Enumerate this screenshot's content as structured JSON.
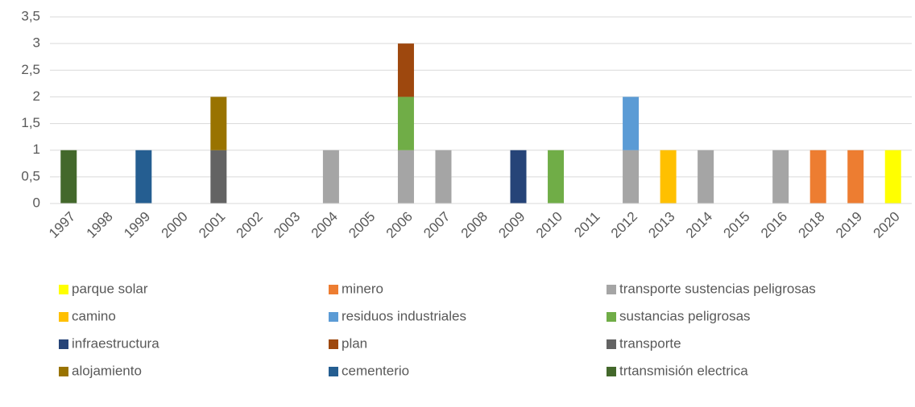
{
  "chart_data": {
    "type": "bar",
    "stacked": true,
    "categories": [
      "1997",
      "1998",
      "1999",
      "2000",
      "2001",
      "2002",
      "2003",
      "2004",
      "2005",
      "2006",
      "2007",
      "2008",
      "2009",
      "2010",
      "2011",
      "2012",
      "2013",
      "2014",
      "2015",
      "2016",
      "2018",
      "2019",
      "2020"
    ],
    "series": [
      {
        "name": "parque solar",
        "color": "#ffff00",
        "values": [
          0,
          0,
          0,
          0,
          0,
          0,
          0,
          0,
          0,
          0,
          0,
          0,
          0,
          0,
          0,
          0,
          0,
          0,
          0,
          0,
          0,
          0,
          1
        ]
      },
      {
        "name": "minero",
        "color": "#ed7d31",
        "values": [
          0,
          0,
          0,
          0,
          0,
          0,
          0,
          0,
          0,
          0,
          0,
          0,
          0,
          0,
          0,
          0,
          0,
          0,
          0,
          0,
          1,
          1,
          0
        ]
      },
      {
        "name": "transporte sustencias peligrosas",
        "color": "#a5a5a5",
        "values": [
          0,
          0,
          0,
          0,
          0,
          0,
          0,
          1,
          0,
          1,
          1,
          0,
          0,
          0,
          0,
          1,
          0,
          1,
          0,
          1,
          0,
          0,
          0
        ]
      },
      {
        "name": "camino",
        "color": "#ffc000",
        "values": [
          0,
          0,
          0,
          0,
          0,
          0,
          0,
          0,
          0,
          0,
          0,
          0,
          0,
          0,
          0,
          0,
          1,
          0,
          0,
          0,
          0,
          0,
          0
        ]
      },
      {
        "name": "residuos industriales",
        "color": "#5b9bd5",
        "values": [
          0,
          0,
          0,
          0,
          0,
          0,
          0,
          0,
          0,
          0,
          0,
          0,
          0,
          0,
          0,
          1,
          0,
          0,
          0,
          0,
          0,
          0,
          0
        ]
      },
      {
        "name": "sustancias peligrosas",
        "color": "#70ad47",
        "values": [
          0,
          0,
          0,
          0,
          0,
          0,
          0,
          0,
          0,
          1,
          0,
          0,
          0,
          1,
          0,
          0,
          0,
          0,
          0,
          0,
          0,
          0,
          0
        ]
      },
      {
        "name": "infraestructura",
        "color": "#264478",
        "values": [
          0,
          0,
          0,
          0,
          0,
          0,
          0,
          0,
          0,
          0,
          0,
          0,
          1,
          0,
          0,
          0,
          0,
          0,
          0,
          0,
          0,
          0,
          0
        ]
      },
      {
        "name": "plan",
        "color": "#9e480e",
        "values": [
          0,
          0,
          0,
          0,
          0,
          0,
          0,
          0,
          0,
          1,
          0,
          0,
          0,
          0,
          0,
          0,
          0,
          0,
          0,
          0,
          0,
          0,
          0
        ]
      },
      {
        "name": "transporte",
        "color": "#636363",
        "values": [
          0,
          0,
          0,
          0,
          1,
          0,
          0,
          0,
          0,
          0,
          0,
          0,
          0,
          0,
          0,
          0,
          0,
          0,
          0,
          0,
          0,
          0,
          0
        ]
      },
      {
        "name": "alojamiento",
        "color": "#997300",
        "values": [
          0,
          0,
          0,
          0,
          1,
          0,
          0,
          0,
          0,
          0,
          0,
          0,
          0,
          0,
          0,
          0,
          0,
          0,
          0,
          0,
          0,
          0,
          0
        ]
      },
      {
        "name": "cementerio",
        "color": "#255e91",
        "values": [
          0,
          0,
          1,
          0,
          0,
          0,
          0,
          0,
          0,
          0,
          0,
          0,
          0,
          0,
          0,
          0,
          0,
          0,
          0,
          0,
          0,
          0,
          0
        ]
      },
      {
        "name": "trtansmisión electrica",
        "color": "#43682b",
        "values": [
          1,
          0,
          0,
          0,
          0,
          0,
          0,
          0,
          0,
          0,
          0,
          0,
          0,
          0,
          0,
          0,
          0,
          0,
          0,
          0,
          0,
          0,
          0
        ]
      }
    ],
    "ylim": [
      0,
      3.5
    ],
    "yticks": [
      0,
      {
        "value": 0.5,
        "label": "0,5"
      },
      1,
      {
        "value": 1.5,
        "label": "1,5"
      },
      2,
      {
        "value": 2.5,
        "label": "2,5"
      },
      3,
      {
        "value": 3.5,
        "label": "3,5"
      }
    ],
    "grid": true,
    "legend": "bottom"
  }
}
